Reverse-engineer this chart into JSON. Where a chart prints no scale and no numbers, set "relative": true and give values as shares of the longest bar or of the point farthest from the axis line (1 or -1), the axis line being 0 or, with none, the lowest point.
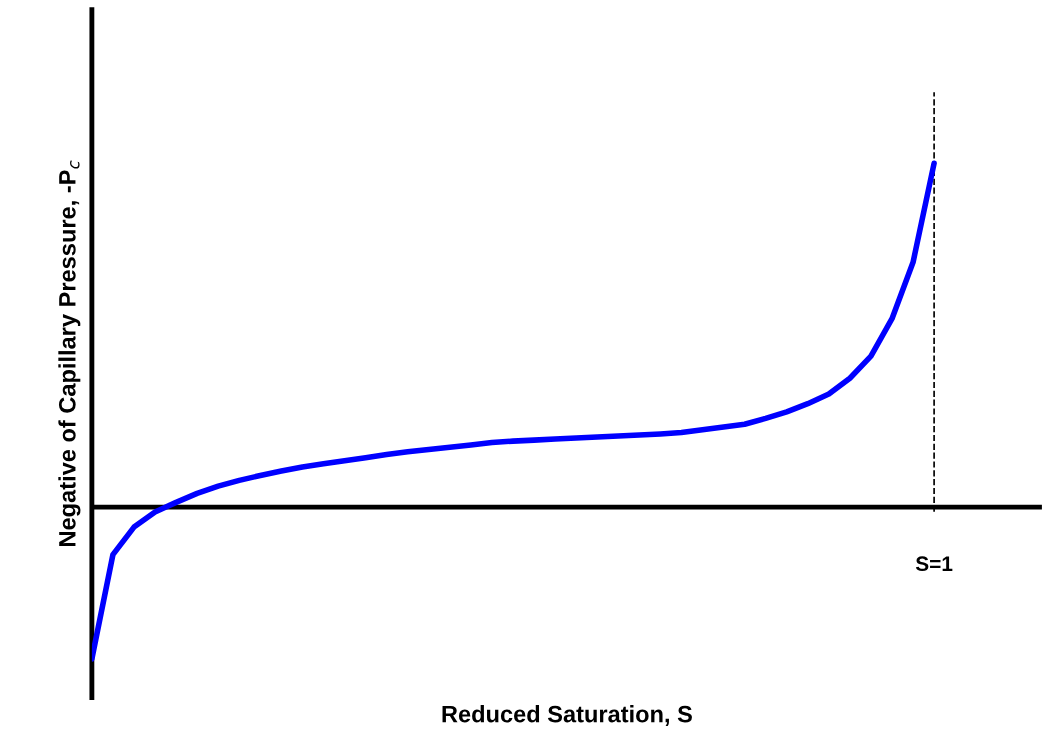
{
  "chart_data": {
    "type": "line",
    "relative": true,
    "xlabel": "Reduced Saturation, S",
    "ylabel": "Negative of Capillary Pressure, -P$_{c}$",
    "legend": false,
    "marker": "none",
    "line_style": "solid",
    "categories": [
      null,
      null,
      null,
      null,
      null,
      null,
      null,
      null,
      null,
      null,
      null,
      null,
      null,
      null,
      null,
      null,
      null,
      null,
      null,
      null,
      null,
      null,
      null,
      null,
      null,
      null,
      null,
      null,
      null,
      null,
      null,
      null,
      null,
      null,
      null,
      null,
      null,
      null,
      null,
      null,
      null
    ],
    "series": [
      {
        "color": "#0000ff",
        "values": [
          -0.441,
          -0.138,
          -0.058,
          -0.014,
          0.014,
          0.04,
          0.061,
          0.078,
          0.092,
          0.105,
          0.117,
          0.126,
          0.135,
          0.144,
          0.153,
          0.161,
          0.168,
          0.174,
          0.181,
          0.188,
          0.192,
          0.195,
          0.198,
          0.201,
          0.204,
          0.207,
          0.21,
          0.213,
          0.217,
          0.225,
          0.233,
          0.241,
          0.258,
          0.277,
          0.301,
          0.329,
          0.375,
          0.439,
          0.548,
          0.712,
          1.0
        ]
      }
    ],
    "ref_lines": [
      {
        "axis": "x",
        "label": "S=1",
        "color": "#000000",
        "line_style": "dashed"
      }
    ]
  }
}
